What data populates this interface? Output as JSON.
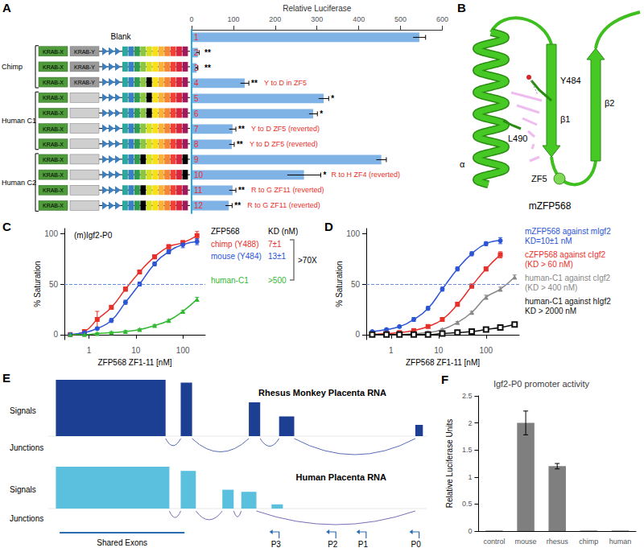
{
  "chart_data": [
    {
      "panel": "A",
      "type": "bar",
      "orientation": "horizontal",
      "xlabel": "Relative Luciferase",
      "categories": [
        "1",
        "2",
        "3",
        "4",
        "5",
        "6",
        "7",
        "8",
        "9",
        "10",
        "11",
        "12"
      ],
      "values": [
        545,
        15,
        12,
        127,
        316,
        291,
        98,
        96,
        454,
        269,
        98,
        89
      ],
      "errors": [
        15,
        3,
        3,
        10,
        12,
        10,
        8,
        6,
        12,
        40,
        8,
        8
      ],
      "significance": [
        null,
        "**",
        "**",
        "**",
        "*",
        "*",
        "**",
        "**",
        null,
        "*",
        "**",
        "**"
      ],
      "notes": [
        null,
        null,
        null,
        "Y to D in ZF5",
        null,
        null,
        "Y to D ZF5 (reverted)",
        "Y to D ZF5 (reverted)",
        null,
        "R to H ZF4 (reverted)",
        "R to G ZF11 (reverted)",
        "R to G ZF11 (reverted)"
      ],
      "color": "#7fb2e5",
      "xlim": [
        0,
        600
      ],
      "xticks": [
        0,
        100,
        200,
        300,
        400,
        500,
        600
      ]
    },
    {
      "panel": "C",
      "type": "line",
      "title": "(m)Igf2-P0",
      "xlabel": "ZFP568 ZF1-11 [nM]",
      "ylabel": "% Saturation",
      "log": "x",
      "xlim": [
        0.3,
        300
      ],
      "xticks": [
        1,
        10,
        100
      ],
      "ylim": [
        -5,
        105
      ],
      "yticks": [
        0,
        50,
        100
      ],
      "reference_line": 50,
      "legend_header": "ZFP568",
      "kd_header": "KD (nM)",
      "fold_change": ">70X",
      "x": [
        0.4,
        0.8,
        1.5,
        3,
        6,
        12,
        25,
        50,
        100,
        200
      ],
      "series": [
        {
          "name": "chimp (Y488)",
          "kd": "7±1",
          "color": "#e8302a",
          "marker": "square",
          "values": [
            0,
            3,
            15,
            27,
            45,
            62,
            77,
            87,
            91,
            98
          ],
          "errors": [
            1,
            1,
            8,
            2,
            2,
            2,
            2,
            2,
            2,
            4
          ]
        },
        {
          "name": "mouse (Y484)",
          "kd": "13±1",
          "color": "#2b55d6",
          "marker": "circle",
          "values": [
            0,
            2,
            6,
            14,
            32,
            50,
            70,
            82,
            89,
            92
          ],
          "errors": [
            1,
            1,
            1,
            2,
            2,
            2,
            2,
            2,
            3,
            3
          ]
        },
        {
          "name": "human-C1",
          "kd": ">500",
          "color": "#33b833",
          "marker": "triangle",
          "values": [
            0,
            0,
            1,
            2,
            3,
            5,
            9,
            14,
            23,
            35
          ],
          "errors": [
            1,
            1,
            1,
            1,
            1,
            1,
            1,
            1,
            1,
            2
          ]
        }
      ]
    },
    {
      "panel": "D",
      "type": "line",
      "xlabel": "ZFP568 ZF1-11 [nM]",
      "ylabel": "% Saturation",
      "log": "x",
      "xlim": [
        0.3,
        500
      ],
      "xticks": [
        1,
        10,
        100
      ],
      "ylim": [
        -5,
        105
      ],
      "yticks": [
        0,
        50,
        100
      ],
      "reference_line": 50,
      "x": [
        0.4,
        0.8,
        1.5,
        3,
        6,
        12,
        25,
        50,
        100,
        200,
        400
      ],
      "series": [
        {
          "name": "mZFP568 against mIgf2",
          "kd": "KD=10±1 nM",
          "color": "#2b55d6",
          "marker": "circle",
          "values": [
            3,
            5,
            8,
            15,
            26,
            45,
            65,
            80,
            90,
            93,
            null
          ],
          "errors": [
            1,
            1,
            1,
            2,
            2,
            2,
            2,
            2,
            2,
            3,
            null
          ]
        },
        {
          "name": "cZFP568 against cIgf2",
          "kd": "(KD > 60 nM)",
          "color": "#e8302a",
          "marker": "square",
          "values": [
            0,
            1,
            2,
            4,
            8,
            15,
            30,
            48,
            65,
            79,
            null
          ],
          "errors": [
            1,
            1,
            1,
            1,
            1,
            1,
            2,
            2,
            2,
            3,
            null
          ]
        },
        {
          "name": "human-C1 against cIgf2",
          "kd": "(KD > 400 nM)",
          "color": "#888888",
          "marker": "triangle",
          "values": [
            0,
            0,
            0,
            1,
            2,
            5,
            12,
            22,
            37,
            45,
            57
          ],
          "errors": [
            1,
            1,
            1,
            1,
            1,
            1,
            1,
            1,
            2,
            2,
            2
          ]
        },
        {
          "name": "human-C1 against hIgf2",
          "kd": "KD > 2000 nM",
          "color": "#111111",
          "marker": "open_square",
          "values": [
            0,
            0,
            0,
            0,
            0,
            1,
            2,
            3,
            5,
            7,
            10
          ],
          "errors": [
            1,
            1,
            1,
            1,
            1,
            1,
            1,
            1,
            1,
            1,
            1
          ]
        }
      ]
    },
    {
      "panel": "F",
      "type": "bar",
      "title": "Igf2-P0 promoter activity",
      "ylabel": "Relative Luciferase Units",
      "categories": [
        "control",
        "mouse",
        "rhesus",
        "chimp",
        "human"
      ],
      "values": [
        0.01,
        2.0,
        1.2,
        0.01,
        0.01
      ],
      "errors": [
        0,
        0.22,
        0.05,
        0,
        0
      ],
      "color": "#7f7f7f",
      "ylim": [
        0,
        2.5
      ],
      "yticks": [
        0,
        0.5,
        1,
        1.5,
        2,
        2.5
      ]
    }
  ],
  "diagrams": {
    "A": {
      "panel": "A",
      "row_header": "Blank",
      "domains": [
        "KRAB-X",
        "KRAB-Y"
      ],
      "krab_y_rows": [
        2,
        3,
        4
      ],
      "zinc_finger_count": 11,
      "variant_zinc_fingers": [
        null,
        [],
        [],
        [
          5
        ],
        [
          5
        ],
        [
          5
        ],
        [],
        [],
        [
          4,
          11
        ],
        [
          11
        ],
        [
          4
        ],
        [
          4
        ]
      ],
      "groups": [
        {
          "label": "Chimp",
          "rows": [
            2,
            4
          ]
        },
        {
          "label": "Human C1",
          "rows": [
            5,
            8
          ]
        },
        {
          "label": "Human C2",
          "rows": [
            9,
            12
          ]
        }
      ]
    },
    "B": {
      "panel": "B",
      "protein": "mZFP568",
      "residue_1": "Y484",
      "residue_2": "L490",
      "helix": "α",
      "strand_1": "β1",
      "strand_2": "β2",
      "zinc_finger": "ZF5"
    },
    "E": {
      "panel": "E",
      "tracks": [
        {
          "name": "Rhesus Monkey Placenta RNA",
          "color": "#1c3f94",
          "junction_color": "#5a6bb5",
          "signal_label": "Signals",
          "junction_label": "Junctions",
          "coverage": [
            [
              2,
              31,
              100
            ],
            [
              35,
              38,
              95
            ],
            [
              53,
              56,
              60
            ],
            [
              61,
              65,
              35
            ],
            [
              97,
              99,
              20
            ]
          ],
          "junctions": [
            [
              31,
              35
            ],
            [
              38,
              53
            ],
            [
              56,
              61
            ],
            [
              65,
              97
            ]
          ]
        },
        {
          "name": "Human Placenta RNA",
          "color": "#5bc0de",
          "junction_color": "#7a6bb5",
          "signal_label": "Signals",
          "junction_label": "Junctions",
          "coverage": [
            [
              2,
              32,
              100
            ],
            [
              35,
              39,
              90
            ],
            [
              46,
              49,
              45
            ],
            [
              51,
              55,
              40
            ],
            [
              59,
              62,
              10
            ]
          ],
          "junctions": [
            [
              32,
              35
            ],
            [
              39,
              46
            ],
            [
              49,
              51
            ],
            [
              55,
              97
            ]
          ]
        }
      ],
      "promoters": [
        {
          "label": "P3",
          "position": 61
        },
        {
          "label": "P2",
          "position": 76
        },
        {
          "label": "P1",
          "position": 84
        },
        {
          "label": "P0",
          "position": 98
        }
      ],
      "shared_exons": {
        "label": "Shared Exons",
        "range": [
          3,
          36
        ]
      }
    }
  }
}
